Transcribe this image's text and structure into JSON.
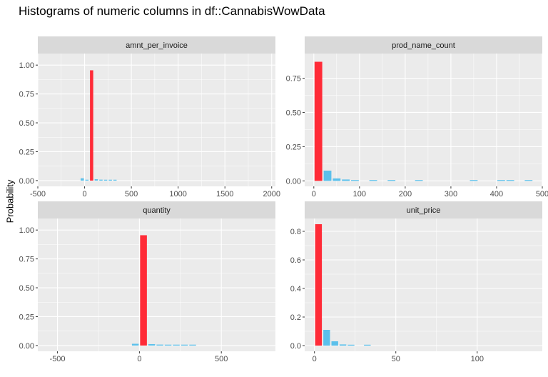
{
  "title": "Histograms of numeric columns in df::CannabisWowData",
  "ylabel": "Probability",
  "colors": {
    "highlight": "#FF2B37",
    "bar": "#5BC0EB",
    "panel": "#EBEBEB",
    "strip": "#D9D9D9",
    "grid": "#FFFFFF",
    "text": "#4D4D4D"
  },
  "chart_data": [
    {
      "type": "bar",
      "facet": "amnt_per_invoice",
      "xlim": [
        -500,
        2040
      ],
      "ylim": [
        -0.05,
        1.1
      ],
      "x_ticks": [
        -500,
        0,
        500,
        1000,
        1500,
        2000
      ],
      "y_ticks": [
        "0.00",
        "0.25",
        "0.50",
        "0.75",
        "1.00"
      ],
      "y_tick_values": [
        0,
        0.25,
        0.5,
        0.75,
        1.0
      ],
      "bin_width": 50,
      "x": [
        -25,
        25,
        75,
        125,
        175,
        225,
        275,
        325
      ],
      "values": [
        0.02,
        0.0,
        0.955,
        0.012,
        0.008,
        0.003,
        0.002,
        0.001
      ],
      "highlight_index": 2
    },
    {
      "type": "bar",
      "facet": "prod_name_count",
      "xlim": [
        -20,
        500
      ],
      "ylim": [
        -0.04,
        0.93
      ],
      "x_ticks": [
        0,
        100,
        200,
        300,
        400,
        500
      ],
      "y_ticks": [
        "0.00",
        "0.25",
        "0.50",
        "0.75"
      ],
      "y_tick_values": [
        0,
        0.25,
        0.5,
        0.75
      ],
      "bin_width": 20,
      "x": [
        10,
        30,
        50,
        70,
        90,
        130,
        170,
        230,
        350,
        410,
        430,
        470
      ],
      "values": [
        0.87,
        0.075,
        0.018,
        0.01,
        0.004,
        0.002,
        0.002,
        0.002,
        0.002,
        0.002,
        0.002,
        0.002
      ],
      "highlight_index": 0
    },
    {
      "type": "bar",
      "facet": "quantity",
      "xlim": [
        -620,
        830
      ],
      "ylim": [
        -0.05,
        1.1
      ],
      "x_ticks": [
        -500,
        0,
        500
      ],
      "y_ticks": [
        "0.00",
        "0.25",
        "0.50",
        "0.75",
        "1.00"
      ],
      "y_tick_values": [
        0,
        0.25,
        0.5,
        0.75,
        1.0
      ],
      "bin_width": 50,
      "x": [
        -25,
        25,
        75,
        125,
        175,
        225,
        275,
        325
      ],
      "values": [
        0.015,
        0.955,
        0.012,
        0.008,
        0.003,
        0.002,
        0.001,
        0.001
      ],
      "highlight_index": 1
    },
    {
      "type": "bar",
      "facet": "unit_price",
      "xlim": [
        -6,
        140
      ],
      "ylim": [
        -0.04,
        0.89
      ],
      "x_ticks": [
        0,
        50,
        100
      ],
      "y_ticks": [
        "0.0",
        "0.2",
        "0.4",
        "0.6",
        "0.8"
      ],
      "y_tick_values": [
        0,
        0.2,
        0.4,
        0.6,
        0.8
      ],
      "bin_width": 5,
      "x": [
        2.5,
        7.5,
        12.5,
        17.5,
        22.5,
        32.5
      ],
      "values": [
        0.85,
        0.11,
        0.03,
        0.008,
        0.003,
        0.001
      ],
      "highlight_index": 0
    }
  ]
}
